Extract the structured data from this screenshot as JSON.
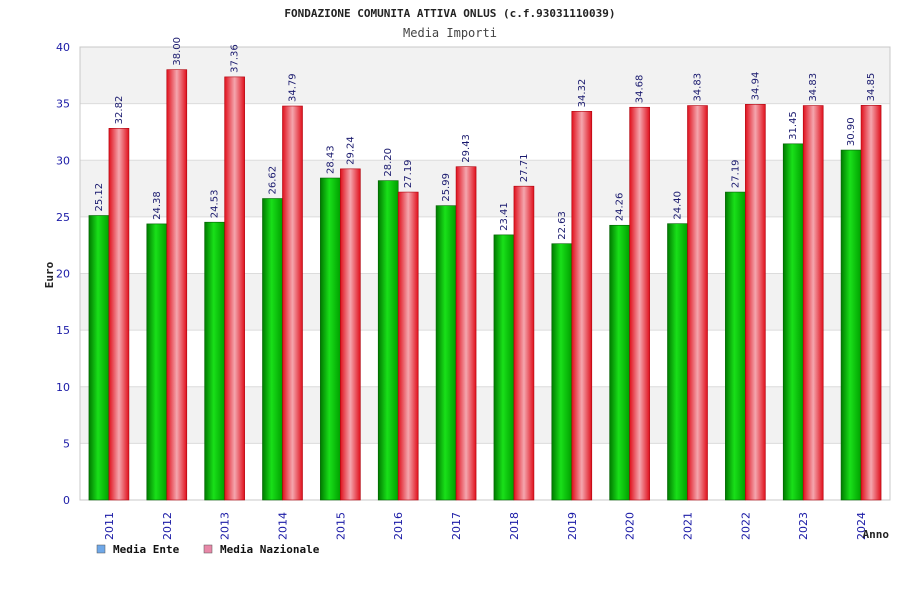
{
  "chart_data": {
    "type": "bar",
    "title": "FONDAZIONE COMUNITA ATTIVA ONLUS (c.f.93031110039)",
    "subtitle": "Media Importi",
    "xlabel": "Anno",
    "ylabel": "Euro",
    "ylim": [
      0,
      40
    ],
    "yticks": [
      0,
      5,
      10,
      15,
      20,
      25,
      30,
      35,
      40
    ],
    "grid": true,
    "legend_position": "bottom-left",
    "categories": [
      "2011",
      "2012",
      "2013",
      "2014",
      "2015",
      "2016",
      "2017",
      "2018",
      "2019",
      "2020",
      "2021",
      "2022",
      "2023",
      "2024"
    ],
    "series": [
      {
        "name": "Media Ente",
        "color": "#00b000",
        "legend_color": "#6fa8e8",
        "values": [
          25.12,
          24.38,
          24.53,
          26.62,
          28.43,
          28.2,
          25.99,
          23.41,
          22.63,
          24.26,
          24.4,
          27.19,
          31.45,
          30.9
        ],
        "labels": [
          "25.12",
          "24.38",
          "24.53",
          "26.62",
          "28.43",
          "28.20",
          "25.99",
          "23.41",
          "22.63",
          "24.26",
          "24.40",
          "27.19",
          "31.45",
          "30.90"
        ]
      },
      {
        "name": "Media Nazionale",
        "color": "#e8101c",
        "legend_color": "#e888a8",
        "values": [
          32.82,
          38.0,
          37.36,
          34.79,
          29.24,
          27.19,
          29.43,
          27.71,
          34.32,
          34.68,
          34.83,
          34.94,
          34.83,
          34.85
        ],
        "labels": [
          "32.82",
          "38.00",
          "37.36",
          "34.79",
          "29.24",
          "27.19",
          "29.43",
          "27.71",
          "34.32",
          "34.68",
          "34.83",
          "34.94",
          "34.83",
          "34.85"
        ]
      }
    ]
  }
}
